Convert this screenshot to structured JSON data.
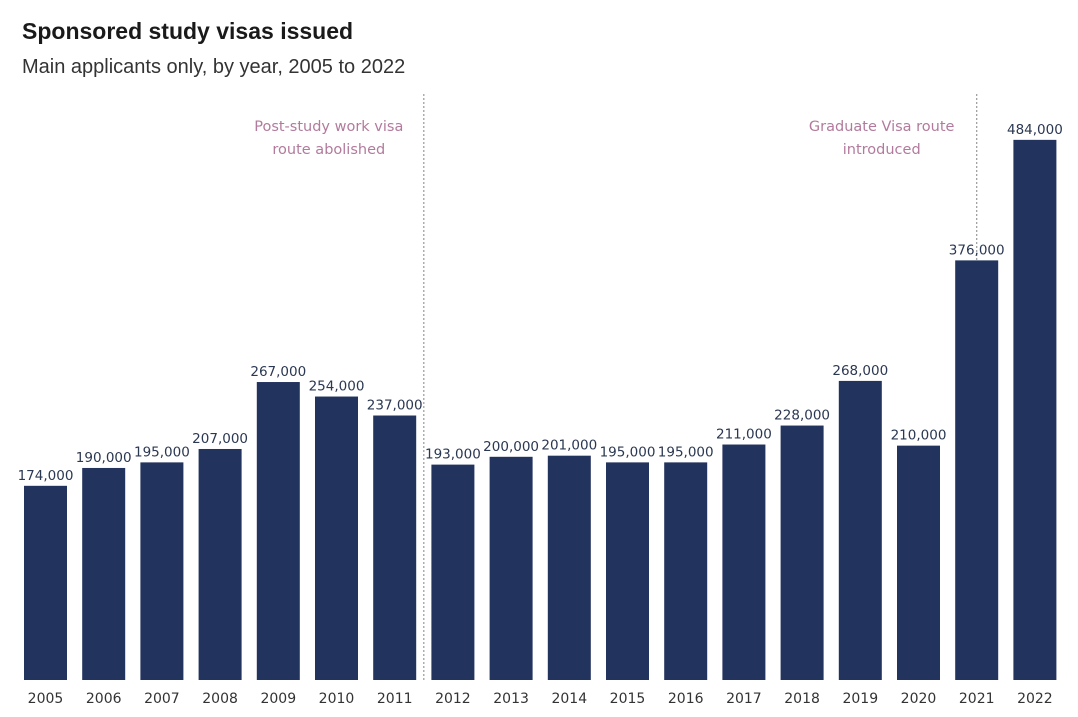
{
  "header": {
    "title": "Sponsored study visas issued",
    "subtitle": "Main applicants only, by year, 2005 to 2022"
  },
  "colors": {
    "bar": "#22335e",
    "annotation": "#b27a9c",
    "label": "#2b3852",
    "axis_label": "#333333",
    "refline": "#999999"
  },
  "chart_data": {
    "type": "bar",
    "title": "Sponsored study visas issued",
    "subtitle": "Main applicants only, by year, 2005 to 2022",
    "xlabel": "",
    "ylabel": "",
    "ylim": [
      0,
      500000
    ],
    "grid": false,
    "categories": [
      "2005",
      "2006",
      "2007",
      "2008",
      "2009",
      "2010",
      "2011",
      "2012",
      "2013",
      "2014",
      "2015",
      "2016",
      "2017",
      "2018",
      "2019",
      "2020",
      "2021",
      "2022"
    ],
    "values": [
      174000,
      190000,
      195000,
      207000,
      267000,
      254000,
      237000,
      193000,
      200000,
      201000,
      195000,
      195000,
      211000,
      228000,
      268000,
      210000,
      376000,
      484000
    ],
    "value_labels": [
      "174,000",
      "190,000",
      "195,000",
      "207,000",
      "267,000",
      "254,000",
      "237,000",
      "193,000",
      "200,000",
      "201,000",
      "195,000",
      "195,000",
      "211,000",
      "228,000",
      "268,000",
      "210,000",
      "376,000",
      "484,000"
    ],
    "reference_lines": [
      {
        "after_category": "2011",
        "label_lines": [
          "Post-study work visa",
          "route abolished"
        ]
      },
      {
        "at_category": "2021",
        "label_lines": [
          "Graduate Visa route",
          "introduced"
        ]
      }
    ]
  }
}
